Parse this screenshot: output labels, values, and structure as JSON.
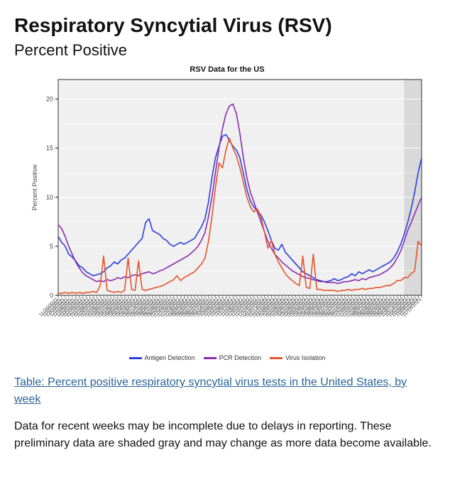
{
  "page_title": "Respiratory Syncytial Virus (RSV)",
  "subtitle": "Percent Positive",
  "link_text": "Table: Percent positive respiratory syncytial virus tests in the United States, by week",
  "note_text": "Data for recent weeks may be incomplete due to delays in reporting. These preliminary data are shaded gray and may change as more data become available.",
  "chart": {
    "type": "line",
    "title": "RSV Data for the US",
    "title_fontsize": 11,
    "title_fontweight": "bold",
    "background_color": "#f0f0f0",
    "grid_color": "#ffffff",
    "axis_color": "#000000",
    "tick_color": "#000000",
    "label_color": "#444444",
    "ylabel": "Percent Positive",
    "ylabel_fontsize": 9,
    "ylim": [
      0,
      22
    ],
    "ytick_step": 5,
    "xlabel_fontsize": 7,
    "xlabel_rotation": -45,
    "line_width": 1.6,
    "preliminary_band": {
      "start_index": 99,
      "end_index": 104,
      "color": "#d9d9d9"
    },
    "legend": {
      "items": [
        {
          "label": "Antigen Detection",
          "color": "#2b3ee0"
        },
        {
          "label": "PCR Detection",
          "color": "#8a2bb0"
        },
        {
          "label": "Virus Isolation",
          "color": "#e8522a"
        }
      ],
      "fontsize": 9
    },
    "x_categories": [
      "11/20/2021",
      "11/27/2021",
      "12/04/2021",
      "12/11/2021",
      "12/18/2021",
      "12/25/2021",
      "01/01/2022",
      "01/08/2022",
      "01/15/2022",
      "01/22/2022",
      "01/29/2022",
      "02/05/2022",
      "02/12/2022",
      "02/19/2022",
      "02/26/2022",
      "03/05/2022",
      "03/12/2022",
      "03/19/2022",
      "03/26/2022",
      "04/02/2022",
      "04/09/2022",
      "04/16/2022",
      "04/23/2022",
      "04/30/2022",
      "05/07/2022",
      "05/14/2022",
      "05/21/2022",
      "05/28/2022",
      "06/04/2022",
      "06/11/2022",
      "06/18/2022",
      "06/25/2022",
      "07/02/2022",
      "07/09/2022",
      "07/16/2022",
      "07/23/2022",
      "07/30/2022",
      "08/06/2022",
      "08/13/2022",
      "08/20/2022",
      "08/27/2022",
      "09/03/2022",
      "09/10/2022",
      "09/17/2022",
      "09/24/2022",
      "10/01/2022",
      "10/08/2022",
      "10/15/2022",
      "10/22/2022",
      "10/29/2022",
      "11/05/2022",
      "11/12/2022",
      "11/19/2022",
      "11/26/2022",
      "12/03/2022",
      "12/10/2022",
      "12/17/2022",
      "12/24/2022",
      "12/31/2022",
      "01/07/2023",
      "01/14/2023",
      "01/21/2023",
      "01/28/2023",
      "02/04/2023",
      "02/11/2023",
      "02/18/2023",
      "02/25/2023",
      "03/04/2023",
      "03/11/2023",
      "03/18/2023",
      "03/25/2023",
      "04/01/2023",
      "04/08/2023",
      "04/15/2023",
      "04/22/2023",
      "04/29/2023",
      "05/06/2023",
      "05/13/2023",
      "05/20/2023",
      "05/27/2023",
      "06/03/2023",
      "06/10/2023",
      "06/17/2023",
      "06/24/2023",
      "07/01/2023",
      "07/08/2023",
      "07/15/2023",
      "07/22/2023",
      "07/29/2023",
      "08/05/2023",
      "08/12/2023",
      "08/19/2023",
      "08/26/2023",
      "09/02/2023",
      "09/09/2023",
      "09/16/2023",
      "09/23/2023",
      "09/30/2023",
      "10/07/2023",
      "10/14/2023",
      "10/21/2023",
      "10/28/2023",
      "11/04/2023",
      "11/11/2023",
      "11/18/2023"
    ],
    "series": [
      {
        "name": "Antigen Detection",
        "color": "#2b3ee0",
        "values": [
          6.0,
          5.4,
          5.0,
          4.2,
          3.9,
          3.5,
          3.0,
          2.8,
          2.4,
          2.2,
          2.0,
          2.1,
          2.2,
          2.4,
          2.8,
          3.0,
          3.4,
          3.2,
          3.6,
          3.8,
          4.2,
          4.6,
          5.0,
          5.4,
          5.8,
          7.4,
          7.8,
          6.6,
          6.4,
          6.2,
          5.8,
          5.6,
          5.2,
          5.0,
          5.2,
          5.4,
          5.2,
          5.4,
          5.6,
          5.8,
          6.4,
          7.0,
          7.8,
          9.5,
          12.0,
          14.0,
          15.2,
          16.2,
          16.4,
          15.8,
          15.2,
          14.8,
          14.0,
          12.4,
          10.8,
          9.6,
          9.0,
          8.6,
          8.2,
          7.5,
          6.6,
          5.6,
          4.8,
          4.6,
          5.2,
          4.4,
          4.0,
          3.6,
          3.2,
          2.8,
          2.4,
          2.2,
          2.0,
          1.8,
          1.6,
          1.5,
          1.4,
          1.4,
          1.5,
          1.7,
          1.5,
          1.6,
          1.8,
          1.9,
          2.2,
          2.0,
          2.4,
          2.2,
          2.4,
          2.6,
          2.4,
          2.6,
          2.8,
          3.0,
          3.2,
          3.4,
          3.8,
          4.4,
          5.2,
          6.2,
          7.4,
          8.8,
          10.5,
          12.5,
          14.0
        ]
      },
      {
        "name": "PCR Detection",
        "color": "#8a2bb0",
        "values": [
          7.2,
          6.8,
          6.0,
          5.0,
          4.2,
          3.4,
          2.8,
          2.3,
          2.0,
          1.8,
          1.6,
          1.4,
          1.5,
          1.4,
          1.6,
          1.5,
          1.6,
          1.8,
          1.7,
          1.9,
          1.8,
          2.0,
          2.1,
          2.0,
          2.2,
          2.3,
          2.4,
          2.2,
          2.3,
          2.5,
          2.6,
          2.8,
          3.0,
          3.2,
          3.4,
          3.6,
          3.8,
          4.0,
          4.3,
          4.6,
          5.0,
          5.6,
          6.4,
          8.0,
          10.0,
          12.5,
          15.0,
          17.0,
          18.5,
          19.3,
          19.5,
          18.5,
          16.5,
          14.0,
          12.0,
          10.5,
          9.5,
          8.5,
          7.5,
          6.5,
          5.5,
          4.8,
          4.2,
          3.8,
          3.4,
          3.1,
          2.8,
          2.5,
          2.3,
          2.1,
          1.9,
          1.8,
          1.7,
          1.6,
          1.5,
          1.4,
          1.4,
          1.3,
          1.3,
          1.3,
          1.2,
          1.3,
          1.4,
          1.4,
          1.5,
          1.6,
          1.5,
          1.7,
          1.6,
          1.8,
          1.9,
          2.0,
          2.1,
          2.3,
          2.5,
          2.8,
          3.2,
          3.8,
          4.5,
          5.5,
          6.6,
          7.4,
          8.3,
          9.2,
          10.0
        ]
      },
      {
        "name": "Virus Isolation",
        "color": "#e8522a",
        "values": [
          0.2,
          0.2,
          0.3,
          0.2,
          0.3,
          0.2,
          0.3,
          0.2,
          0.3,
          0.3,
          0.4,
          0.3,
          1.0,
          4.0,
          0.5,
          0.4,
          0.3,
          0.4,
          0.3,
          0.5,
          3.8,
          0.6,
          0.5,
          3.5,
          0.6,
          0.5,
          0.6,
          0.7,
          0.8,
          0.9,
          1.0,
          1.2,
          1.4,
          1.6,
          2.0,
          1.5,
          1.8,
          2.0,
          2.2,
          2.4,
          2.8,
          3.2,
          3.8,
          5.5,
          8.0,
          11.0,
          13.5,
          13.0,
          14.8,
          16.0,
          15.0,
          14.2,
          13.0,
          11.5,
          10.0,
          9.0,
          8.5,
          8.8,
          8.0,
          6.5,
          4.8,
          5.6,
          4.2,
          3.4,
          2.8,
          2.2,
          1.8,
          1.5,
          1.2,
          1.0,
          4.0,
          0.8,
          0.7,
          4.2,
          0.6,
          0.6,
          0.5,
          0.5,
          0.5,
          0.5,
          0.4,
          0.5,
          0.5,
          0.6,
          0.5,
          0.6,
          0.6,
          0.7,
          0.6,
          0.7,
          0.7,
          0.8,
          0.8,
          0.9,
          1.0,
          1.0,
          1.2,
          1.5,
          1.5,
          1.8,
          1.8,
          2.2,
          2.5,
          5.5,
          5.0
        ]
      }
    ]
  }
}
